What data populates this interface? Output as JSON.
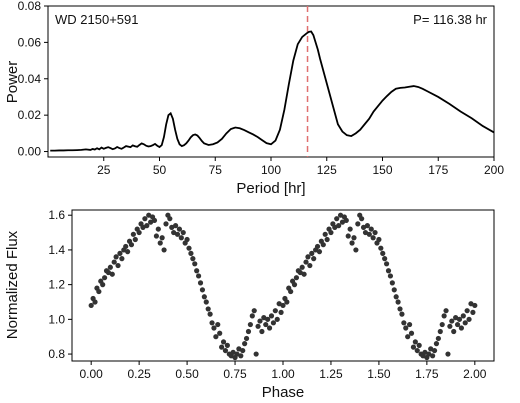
{
  "chart_data": [
    {
      "type": "line",
      "annotation_left": "WD 2150+591",
      "annotation_right": "P= 116.38 hr",
      "xlabel": "Period [hr]",
      "ylabel": "Power",
      "xlim": [
        0,
        200
      ],
      "ylim": [
        -0.003,
        0.08
      ],
      "xticks": [
        25,
        50,
        75,
        100,
        125,
        150,
        175,
        200
      ],
      "yticks": [
        0.0,
        0.02,
        0.04,
        0.06,
        0.08
      ],
      "ytick_labels": [
        "0.00",
        "0.02",
        "0.04",
        "0.06",
        "0.08"
      ],
      "period_marker": 116.38,
      "marker_color": "#e07070",
      "line_color": "#000000",
      "x": [
        1,
        3,
        5,
        7,
        9,
        11,
        13,
        15,
        17,
        19,
        20,
        21,
        22,
        23,
        24,
        25,
        26,
        27,
        28,
        29,
        30,
        31,
        32,
        33,
        34,
        35,
        36,
        37,
        38,
        39,
        40,
        41,
        42,
        43,
        44,
        45,
        46,
        47,
        48,
        49,
        50,
        51,
        52,
        53,
        54,
        55,
        56,
        57,
        58,
        59,
        60,
        61,
        62,
        63,
        64,
        65,
        66,
        67,
        68,
        69,
        70,
        72,
        74,
        76,
        78,
        80,
        82,
        84,
        86,
        88,
        90,
        92,
        94,
        96,
        98,
        100,
        102,
        104,
        106,
        108,
        110,
        112,
        114,
        116,
        117,
        118,
        119,
        120,
        121,
        122,
        124,
        126,
        128,
        130,
        132,
        134,
        136,
        138,
        140,
        142,
        144,
        146,
        148,
        150,
        152,
        154,
        156,
        158,
        160,
        162,
        164,
        166,
        168,
        170,
        175,
        180,
        185,
        190,
        195,
        200
      ],
      "y": [
        0.0005,
        0.0005,
        0.0006,
        0.0006,
        0.0007,
        0.0007,
        0.0008,
        0.0009,
        0.0012,
        0.0009,
        0.0014,
        0.0011,
        0.0018,
        0.0012,
        0.0022,
        0.0015,
        0.002,
        0.0024,
        0.0019,
        0.0013,
        0.0017,
        0.0025,
        0.0019,
        0.0015,
        0.0022,
        0.003,
        0.0027,
        0.0024,
        0.0034,
        0.0029,
        0.0026,
        0.0036,
        0.0045,
        0.004,
        0.0032,
        0.0028,
        0.003,
        0.0035,
        0.0042,
        0.0032,
        0.0025,
        0.0035,
        0.008,
        0.015,
        0.02,
        0.021,
        0.018,
        0.012,
        0.007,
        0.004,
        0.003,
        0.0035,
        0.0045,
        0.006,
        0.0078,
        0.009,
        0.0094,
        0.0088,
        0.0074,
        0.0058,
        0.0045,
        0.0036,
        0.004,
        0.005,
        0.007,
        0.01,
        0.0124,
        0.0132,
        0.0128,
        0.0118,
        0.0106,
        0.0094,
        0.008,
        0.0063,
        0.0046,
        0.004,
        0.006,
        0.012,
        0.023,
        0.037,
        0.05,
        0.059,
        0.063,
        0.065,
        0.0658,
        0.066,
        0.064,
        0.06,
        0.056,
        0.051,
        0.042,
        0.033,
        0.024,
        0.015,
        0.011,
        0.009,
        0.0085,
        0.01,
        0.012,
        0.015,
        0.018,
        0.022,
        0.025,
        0.028,
        0.0305,
        0.0328,
        0.0345,
        0.035,
        0.0352,
        0.0356,
        0.036,
        0.0355,
        0.0345,
        0.0332,
        0.03,
        0.0262,
        0.022,
        0.0183,
        0.014,
        0.0105
      ]
    },
    {
      "type": "scatter",
      "xlabel": "Phase",
      "ylabel": "Normalized Flux",
      "xlim": [
        -0.1,
        2.1
      ],
      "ylim": [
        0.76,
        1.63
      ],
      "xticks": [
        0.0,
        0.25,
        0.5,
        0.75,
        1.0,
        1.25,
        1.5,
        1.75,
        2.0
      ],
      "xtick_labels": [
        "0.00",
        "0.25",
        "0.50",
        "0.75",
        "1.00",
        "1.25",
        "1.50",
        "1.75",
        "2.00"
      ],
      "yticks": [
        0.8,
        1.0,
        1.2,
        1.4,
        1.6
      ],
      "ytick_labels": [
        "0.8",
        "1.0",
        "1.2",
        "1.4",
        "1.6"
      ],
      "point_color": "#333333",
      "points": [
        [
          0.0,
          1.08
        ],
        [
          0.01,
          1.12
        ],
        [
          0.02,
          1.1
        ],
        [
          0.03,
          1.18
        ],
        [
          0.04,
          1.16
        ],
        [
          0.05,
          1.22
        ],
        [
          0.06,
          1.2
        ],
        [
          0.07,
          1.24
        ],
        [
          0.08,
          1.28
        ],
        [
          0.09,
          1.27
        ],
        [
          0.1,
          1.3
        ],
        [
          0.11,
          1.26
        ],
        [
          0.12,
          1.33
        ],
        [
          0.13,
          1.36
        ],
        [
          0.14,
          1.31
        ],
        [
          0.15,
          1.38
        ],
        [
          0.16,
          1.35
        ],
        [
          0.17,
          1.4
        ],
        [
          0.18,
          1.42
        ],
        [
          0.19,
          1.39
        ],
        [
          0.2,
          1.45
        ],
        [
          0.21,
          1.43
        ],
        [
          0.22,
          1.49
        ],
        [
          0.23,
          1.46
        ],
        [
          0.24,
          1.52
        ],
        [
          0.25,
          1.5
        ],
        [
          0.26,
          1.55
        ],
        [
          0.27,
          1.53
        ],
        [
          0.28,
          1.58
        ],
        [
          0.29,
          1.54
        ],
        [
          0.3,
          1.6
        ],
        [
          0.31,
          1.56
        ],
        [
          0.32,
          1.59
        ],
        [
          0.33,
          1.57
        ],
        [
          0.34,
          1.48
        ],
        [
          0.35,
          1.52
        ],
        [
          0.36,
          1.44
        ],
        [
          0.37,
          1.47
        ],
        [
          0.38,
          1.4
        ],
        [
          0.39,
          1.55
        ],
        [
          0.4,
          1.6
        ],
        [
          0.41,
          1.58
        ],
        [
          0.42,
          1.53
        ],
        [
          0.43,
          1.5
        ],
        [
          0.44,
          1.54
        ],
        [
          0.45,
          1.49
        ],
        [
          0.46,
          1.52
        ],
        [
          0.47,
          1.47
        ],
        [
          0.48,
          1.5
        ],
        [
          0.49,
          1.44
        ],
        [
          0.5,
          1.46
        ],
        [
          0.51,
          1.41
        ],
        [
          0.52,
          1.38
        ],
        [
          0.53,
          1.35
        ],
        [
          0.54,
          1.32
        ],
        [
          0.55,
          1.28
        ],
        [
          0.56,
          1.25
        ],
        [
          0.57,
          1.21
        ],
        [
          0.58,
          1.17
        ],
        [
          0.59,
          1.13
        ],
        [
          0.6,
          1.1
        ],
        [
          0.61,
          1.06
        ],
        [
          0.62,
          1.03
        ],
        [
          0.63,
          0.98
        ],
        [
          0.64,
          0.95
        ],
        [
          0.65,
          0.9
        ],
        [
          0.66,
          0.97
        ],
        [
          0.67,
          0.92
        ],
        [
          0.68,
          0.84
        ],
        [
          0.69,
          0.87
        ],
        [
          0.7,
          0.82
        ],
        [
          0.71,
          0.85
        ],
        [
          0.72,
          0.8
        ],
        [
          0.73,
          0.79
        ],
        [
          0.74,
          0.81
        ],
        [
          0.75,
          0.78
        ],
        [
          0.76,
          0.8
        ],
        [
          0.77,
          0.83
        ],
        [
          0.78,
          0.79
        ],
        [
          0.79,
          0.82
        ],
        [
          0.8,
          0.86
        ],
        [
          0.81,
          0.89
        ],
        [
          0.82,
          0.93
        ],
        [
          0.83,
          0.97
        ],
        [
          0.84,
          1.02
        ],
        [
          0.85,
          1.05
        ],
        [
          0.86,
          0.8
        ],
        [
          0.87,
          0.96
        ],
        [
          0.88,
          0.99
        ],
        [
          0.89,
          0.93
        ],
        [
          0.9,
          1.01
        ],
        [
          0.91,
          0.97
        ],
        [
          0.92,
          1.0
        ],
        [
          0.93,
          0.95
        ],
        [
          0.94,
          1.02
        ],
        [
          0.95,
          0.98
        ],
        [
          0.96,
          1.05
        ],
        [
          0.97,
          1.0
        ],
        [
          0.98,
          1.09
        ],
        [
          0.99,
          1.04
        ],
        [
          1.0,
          1.08
        ],
        [
          1.01,
          1.12
        ],
        [
          1.02,
          1.1
        ],
        [
          1.03,
          1.18
        ],
        [
          1.04,
          1.16
        ],
        [
          1.05,
          1.22
        ],
        [
          1.06,
          1.2
        ],
        [
          1.07,
          1.24
        ],
        [
          1.08,
          1.28
        ],
        [
          1.09,
          1.27
        ],
        [
          1.1,
          1.3
        ],
        [
          1.11,
          1.26
        ],
        [
          1.12,
          1.33
        ],
        [
          1.13,
          1.36
        ],
        [
          1.14,
          1.31
        ],
        [
          1.15,
          1.38
        ],
        [
          1.16,
          1.35
        ],
        [
          1.17,
          1.4
        ],
        [
          1.18,
          1.42
        ],
        [
          1.19,
          1.39
        ],
        [
          1.2,
          1.45
        ],
        [
          1.21,
          1.43
        ],
        [
          1.22,
          1.49
        ],
        [
          1.23,
          1.46
        ],
        [
          1.24,
          1.52
        ],
        [
          1.25,
          1.5
        ],
        [
          1.26,
          1.55
        ],
        [
          1.27,
          1.53
        ],
        [
          1.28,
          1.58
        ],
        [
          1.29,
          1.54
        ],
        [
          1.3,
          1.6
        ],
        [
          1.31,
          1.56
        ],
        [
          1.32,
          1.59
        ],
        [
          1.33,
          1.57
        ],
        [
          1.34,
          1.48
        ],
        [
          1.35,
          1.52
        ],
        [
          1.36,
          1.44
        ],
        [
          1.37,
          1.47
        ],
        [
          1.38,
          1.4
        ],
        [
          1.39,
          1.55
        ],
        [
          1.4,
          1.6
        ],
        [
          1.41,
          1.58
        ],
        [
          1.42,
          1.53
        ],
        [
          1.43,
          1.5
        ],
        [
          1.44,
          1.54
        ],
        [
          1.45,
          1.49
        ],
        [
          1.46,
          1.52
        ],
        [
          1.47,
          1.47
        ],
        [
          1.48,
          1.5
        ],
        [
          1.49,
          1.44
        ],
        [
          1.5,
          1.46
        ],
        [
          1.51,
          1.41
        ],
        [
          1.52,
          1.38
        ],
        [
          1.53,
          1.35
        ],
        [
          1.54,
          1.32
        ],
        [
          1.55,
          1.28
        ],
        [
          1.56,
          1.25
        ],
        [
          1.57,
          1.21
        ],
        [
          1.58,
          1.17
        ],
        [
          1.59,
          1.13
        ],
        [
          1.6,
          1.1
        ],
        [
          1.61,
          1.06
        ],
        [
          1.62,
          1.03
        ],
        [
          1.63,
          0.98
        ],
        [
          1.64,
          0.95
        ],
        [
          1.65,
          0.9
        ],
        [
          1.66,
          0.97
        ],
        [
          1.67,
          0.92
        ],
        [
          1.68,
          0.84
        ],
        [
          1.69,
          0.87
        ],
        [
          1.7,
          0.82
        ],
        [
          1.71,
          0.85
        ],
        [
          1.72,
          0.8
        ],
        [
          1.73,
          0.79
        ],
        [
          1.74,
          0.81
        ],
        [
          1.75,
          0.78
        ],
        [
          1.76,
          0.8
        ],
        [
          1.77,
          0.83
        ],
        [
          1.78,
          0.79
        ],
        [
          1.79,
          0.82
        ],
        [
          1.8,
          0.86
        ],
        [
          1.81,
          0.89
        ],
        [
          1.82,
          0.93
        ],
        [
          1.83,
          0.97
        ],
        [
          1.84,
          1.02
        ],
        [
          1.85,
          1.05
        ],
        [
          1.86,
          0.8
        ],
        [
          1.87,
          0.96
        ],
        [
          1.88,
          0.99
        ],
        [
          1.89,
          0.93
        ],
        [
          1.9,
          1.01
        ],
        [
          1.91,
          0.97
        ],
        [
          1.92,
          1.0
        ],
        [
          1.93,
          0.95
        ],
        [
          1.94,
          1.02
        ],
        [
          1.95,
          0.98
        ],
        [
          1.96,
          1.05
        ],
        [
          1.97,
          1.0
        ],
        [
          1.98,
          1.09
        ],
        [
          1.99,
          1.04
        ],
        [
          2.0,
          1.08
        ]
      ]
    }
  ]
}
